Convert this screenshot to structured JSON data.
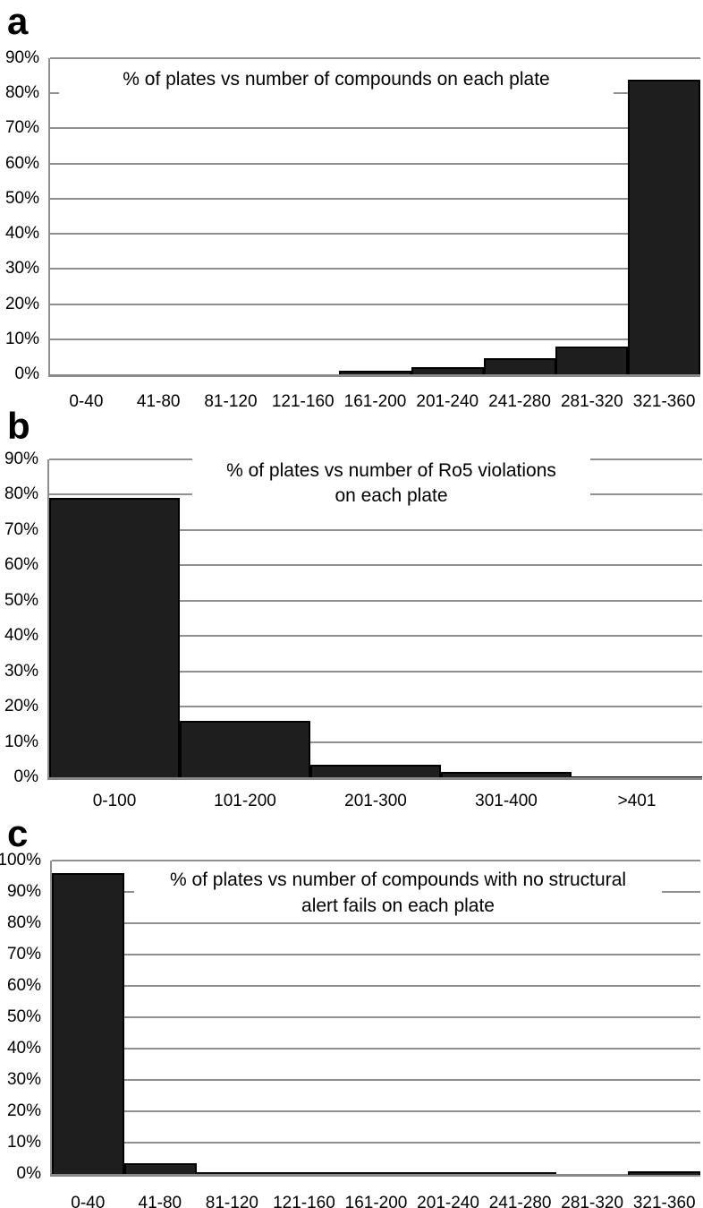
{
  "figure": {
    "description": "Three stacked histogram panels on white background",
    "panels": [
      "a",
      "b",
      "c"
    ]
  },
  "colors": {
    "bar_fill": "#1e1e1e",
    "bar_border": "#000000",
    "gridline": "#8f8f8f",
    "axis": "#898989",
    "background": "#ffffff",
    "text": "#000000"
  },
  "chart_data": [
    {
      "type": "bar",
      "panel_label": "a",
      "title": "% of plates vs number of compounds on each plate",
      "title_lines": [
        "% of plates vs number of compounds on each plate"
      ],
      "categories": [
        "0-40",
        "41-80",
        "81-120",
        "121-160",
        "161-200",
        "201-240",
        "241-280",
        "281-320",
        "321-360"
      ],
      "values": [
        0,
        0,
        0,
        0,
        1,
        2,
        4.5,
        8,
        84
      ],
      "xlabel": "",
      "ylabel": "",
      "ylim": [
        0,
        90
      ],
      "ytick_labels": [
        "90%",
        "80%",
        "70%",
        "60%",
        "50%",
        "40%",
        "30%",
        "20%",
        "10%",
        "0%"
      ],
      "grid": true,
      "legend": false,
      "bar_gap": "none"
    },
    {
      "type": "bar",
      "panel_label": "b",
      "title": "% of plates vs number of Ro5 violations on each plate",
      "title_lines": [
        "% of plates vs number of Ro5 violations",
        "on each plate"
      ],
      "categories": [
        "0-100",
        "101-200",
        "201-300",
        "301-400",
        ">401"
      ],
      "values": [
        79,
        16,
        3.5,
        1.5,
        0.2
      ],
      "xlabel": "",
      "ylabel": "",
      "ylim": [
        0,
        90
      ],
      "ytick_labels": [
        "90%",
        "80%",
        "70%",
        "60%",
        "50%",
        "40%",
        "30%",
        "20%",
        "10%",
        "0%"
      ],
      "grid": true,
      "legend": false,
      "bar_gap": "none"
    },
    {
      "type": "bar",
      "panel_label": "c",
      "title": "% of plates vs number of compounds with no structural alert fails on each plate",
      "title_lines": [
        "% of plates vs number of compounds with no structural",
        "alert fails on each plate"
      ],
      "categories": [
        "0-40",
        "41-80",
        "81-120",
        "121-160",
        "161-200",
        "201-240",
        "241-280",
        "281-320",
        "321-360"
      ],
      "values": [
        96,
        3.5,
        0.6,
        0.6,
        0.6,
        0.6,
        0.6,
        0,
        1
      ],
      "xlabel": "",
      "ylabel": "",
      "ylim": [
        0,
        100
      ],
      "ytick_labels": [
        "100%",
        "90%",
        "80%",
        "70%",
        "60%",
        "50%",
        "40%",
        "30%",
        "20%",
        "10%",
        "0%"
      ],
      "grid": true,
      "legend": false,
      "bar_gap": "none"
    }
  ]
}
